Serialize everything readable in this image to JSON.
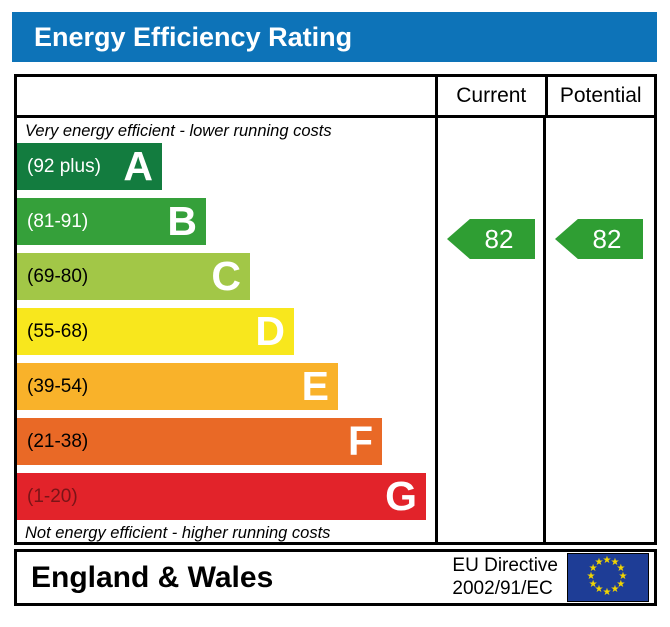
{
  "title": "Energy Efficiency Rating",
  "table": {
    "columns": {
      "current": "Current",
      "potential": "Potential"
    }
  },
  "scale": {
    "top_note": "Very energy efficient - lower running costs",
    "bottom_note": "Not energy efficient - higher running costs",
    "bands": [
      {
        "letter": "A",
        "range": "(92 plus)",
        "color": "#137c3f",
        "label_color": "#ffffff"
      },
      {
        "letter": "B",
        "range": "(81-91)",
        "color": "#35a03a",
        "label_color": "#ffffff"
      },
      {
        "letter": "C",
        "range": "(69-80)",
        "color": "#a2c747",
        "label_color": "#000000"
      },
      {
        "letter": "D",
        "range": "(55-68)",
        "color": "#f8e71d",
        "label_color": "#000000"
      },
      {
        "letter": "E",
        "range": "(39-54)",
        "color": "#f9b22a",
        "label_color": "#000000"
      },
      {
        "letter": "F",
        "range": "(21-38)",
        "color": "#e96926",
        "label_color": "#000000"
      },
      {
        "letter": "G",
        "range": "(1-20)",
        "color": "#e2232a",
        "label_color": "#7a1417"
      }
    ]
  },
  "ratings": {
    "current": {
      "value": "82",
      "band": "B",
      "arrow_color": "#2f9e33"
    },
    "potential": {
      "value": "82",
      "band": "B",
      "arrow_color": "#2f9e33"
    }
  },
  "footer": {
    "region": "England & Wales",
    "directive_line1": "EU Directive",
    "directive_line2": "2002/91/EC",
    "flag": {
      "icon": "eu-flag",
      "bg_color": "#1e3d96",
      "star_color": "#f2d500",
      "star_count": 12,
      "star_glyph": "★"
    }
  },
  "colors": {
    "title_bar": "#0d73b8",
    "border": "#000000"
  },
  "chart_data": {
    "type": "bar",
    "title": "Energy Efficiency Rating",
    "orientation": "horizontal",
    "categories": [
      "A",
      "B",
      "C",
      "D",
      "E",
      "F",
      "G"
    ],
    "band_ranges": [
      "92 plus",
      "81-91",
      "69-80",
      "55-68",
      "39-54",
      "21-38",
      "1-20"
    ],
    "band_colors": [
      "#137c3f",
      "#35a03a",
      "#a2c747",
      "#f8e71d",
      "#f9b22a",
      "#e96926",
      "#e2232a"
    ],
    "bar_lengths_relative": [
      1,
      2,
      3,
      4,
      5,
      6,
      7
    ],
    "scale_range": [
      1,
      100
    ],
    "series": [
      {
        "name": "Current",
        "value": 82,
        "band": "B"
      },
      {
        "name": "Potential",
        "value": 82,
        "band": "B"
      }
    ],
    "annotations": [
      "Very energy efficient - lower running costs",
      "Not energy efficient - higher running costs",
      "England & Wales",
      "EU Directive 2002/91/EC"
    ],
    "legend_position": "none",
    "grid": false
  }
}
